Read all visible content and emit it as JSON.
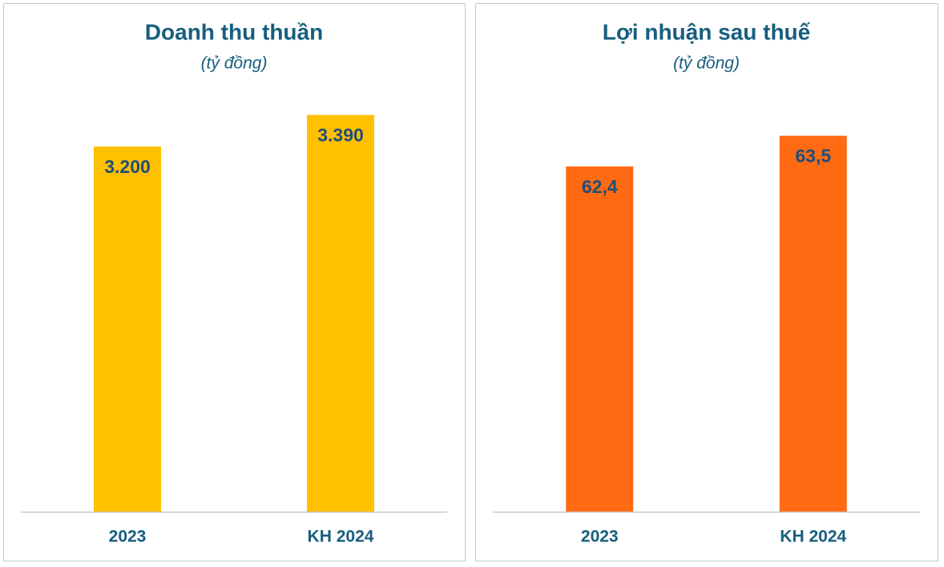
{
  "chart_data": [
    {
      "type": "bar",
      "title": "Doanh thu thuần",
      "subtitle": "(tỷ đồng)",
      "categories": [
        "2023",
        "KH 2024"
      ],
      "values": [
        3200,
        3390
      ],
      "value_labels": [
        "3.200",
        "3.390"
      ],
      "color": "#ffc000",
      "ylim": [
        1000,
        3600
      ]
    },
    {
      "type": "bar",
      "title": "Lợi nhuận sau thuế",
      "subtitle": "(tỷ đồng)",
      "categories": [
        "2023",
        "KH 2024"
      ],
      "values": [
        62.4,
        63.5
      ],
      "value_labels": [
        "62,4",
        "63,5"
      ],
      "color": "#ff6a13",
      "ylim": [
        50,
        65.5
      ]
    }
  ]
}
